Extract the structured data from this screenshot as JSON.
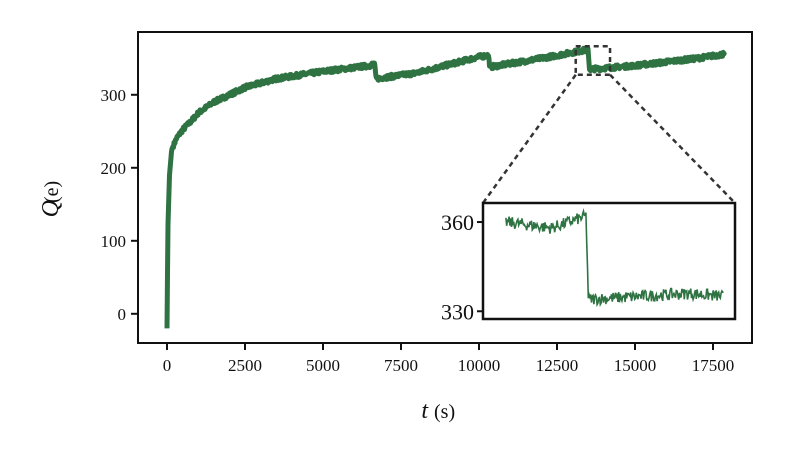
{
  "chart_data": {
    "type": "line",
    "xlabel_var": "t",
    "xlabel_unit": "(s)",
    "ylabel_var": "Q",
    "ylabel_unit": "(e)",
    "xlim": [
      -930,
      18750
    ],
    "ylim": [
      -40,
      386
    ],
    "xticks": [
      0,
      2500,
      5000,
      7500,
      10000,
      12500,
      15000,
      17500
    ],
    "yticks": [
      0,
      100,
      200,
      300
    ],
    "grid": false,
    "color": "#2f7343",
    "series": [
      {
        "x": [
          0,
          30,
          80,
          150,
          300,
          500,
          800,
          1000,
          1500,
          2000,
          2500,
          3500,
          5000,
          6500,
          6650,
          6700,
          8000,
          10000,
          10300,
          10350,
          12000,
          13500,
          13540,
          15000,
          17000,
          17900
        ],
        "y": [
          -20,
          120,
          190,
          225,
          240,
          252,
          265,
          275,
          290,
          300,
          310,
          322,
          332,
          340,
          343,
          322,
          330,
          352,
          354,
          338,
          350,
          362,
          335,
          340,
          350,
          356
        ]
      }
    ],
    "inset": {
      "xlim": [
        13100,
        14200
      ],
      "ylim": [
        327.4,
        366.4
      ],
      "yticks": [
        330,
        360
      ],
      "series": [
        {
          "x": [
            13200,
            13400,
            13550,
            13560,
            14000,
            14150
          ],
          "y": [
            360,
            358,
            362,
            334,
            336,
            335
          ]
        }
      ]
    }
  }
}
